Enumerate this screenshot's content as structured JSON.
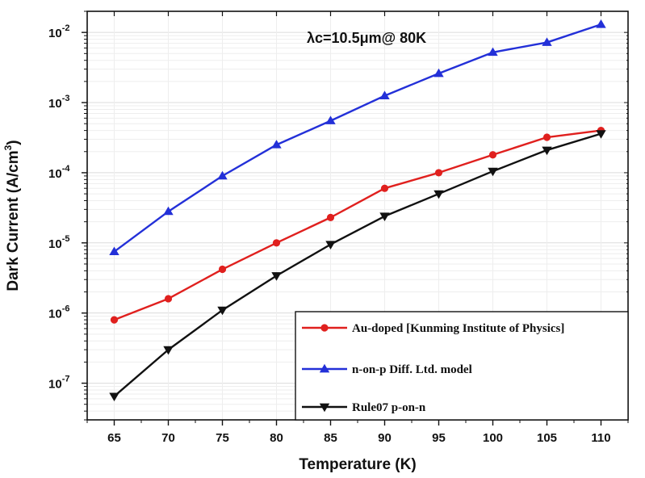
{
  "chart_data": {
    "type": "line",
    "xlabel": "Temperature (K)",
    "ylabel": "Dark Current (A/cm3)",
    "ylabel_parts": {
      "main": "Dark Current (A/cm",
      "sup": "3",
      "close": ")"
    },
    "annotation": {
      "symbol": "λc",
      "text": "=10.5μm@ 80K"
    },
    "x": [
      65,
      70,
      75,
      80,
      85,
      90,
      95,
      100,
      105,
      110
    ],
    "xlim": [
      62.5,
      112.5
    ],
    "ylim": [
      3e-08,
      0.02
    ],
    "yscale": "log",
    "x_ticks": [
      "65",
      "70",
      "75",
      "80",
      "85",
      "90",
      "95",
      "100",
      "105",
      "110"
    ],
    "y_ticks": [
      {
        "value": 1e-07,
        "base": "10",
        "exp": "-7"
      },
      {
        "value": 1e-06,
        "base": "10",
        "exp": "-6"
      },
      {
        "value": 1e-05,
        "base": "10",
        "exp": "-5"
      },
      {
        "value": 0.0001,
        "base": "10",
        "exp": "-4"
      },
      {
        "value": 0.001,
        "base": "10",
        "exp": "-3"
      },
      {
        "value": 0.01,
        "base": "10",
        "exp": "-2"
      }
    ],
    "grid": true,
    "legend_position": "bottom-right",
    "series": [
      {
        "name": "Au-doped [Kunming Institute of Physics]",
        "color": "#e0201e",
        "marker": "circle",
        "values": [
          8e-07,
          1.6e-06,
          4.2e-06,
          1e-05,
          2.3e-05,
          6e-05,
          0.0001,
          0.00018,
          0.00032,
          0.0004
        ]
      },
      {
        "name": "n-on-p Diff. Ltd. model",
        "color": "#2330d8",
        "marker": "triangle-up",
        "values": [
          7.5e-06,
          2.8e-05,
          9e-05,
          0.00025,
          0.00055,
          0.00125,
          0.0026,
          0.0052,
          0.0072,
          0.013
        ]
      },
      {
        "name": "Rule07 p-on-n",
        "color": "#111111",
        "marker": "triangle-down",
        "values": [
          6.5e-08,
          3e-07,
          1.1e-06,
          3.4e-06,
          9.5e-06,
          2.4e-05,
          5e-05,
          0.000105,
          0.00021,
          0.00036
        ]
      }
    ]
  }
}
